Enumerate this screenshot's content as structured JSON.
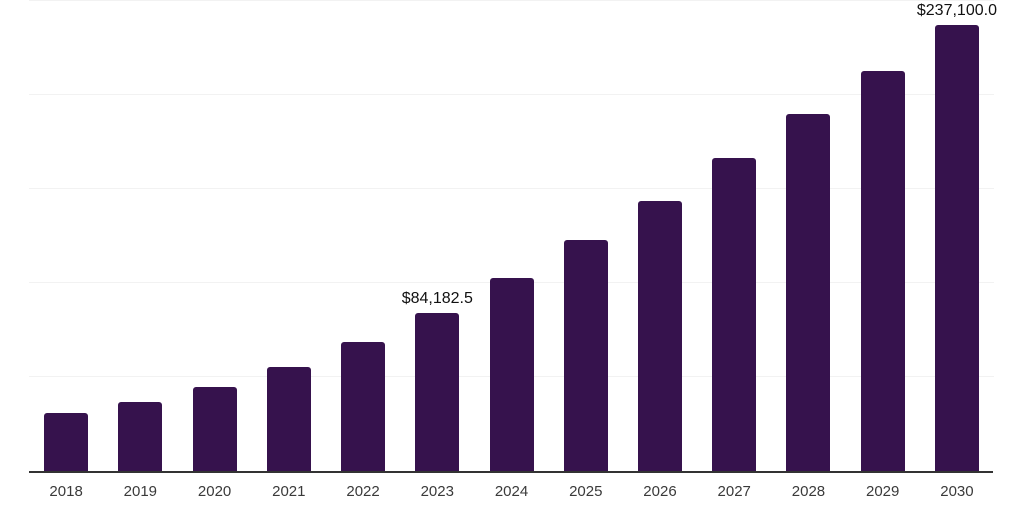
{
  "chart_data": {
    "type": "bar",
    "categories": [
      "2018",
      "2019",
      "2020",
      "2021",
      "2022",
      "2023",
      "2024",
      "2025",
      "2026",
      "2027",
      "2028",
      "2029",
      "2030"
    ],
    "values": [
      31000,
      36800,
      44900,
      55500,
      68400,
      84182.5,
      102500,
      122800,
      143800,
      166700,
      189900,
      212900,
      237100
    ],
    "annotations": [
      {
        "category": "2023",
        "text": "$84,182.5"
      },
      {
        "category": "2030",
        "text": "$237,100.0"
      }
    ],
    "xlabel": "",
    "ylabel": "",
    "ylim": [
      0,
      250000
    ],
    "gridline_values": [
      50000,
      100000,
      150000,
      200000,
      250000
    ],
    "grid": true,
    "legend": "none",
    "y_axis_labels_visible": false,
    "colors": {
      "bar": "#36124D",
      "axis": "#333333",
      "gridline": "#f2f2f2",
      "tick_label": "#3a3a3a",
      "data_label": "#111111",
      "background": "#ffffff"
    }
  }
}
